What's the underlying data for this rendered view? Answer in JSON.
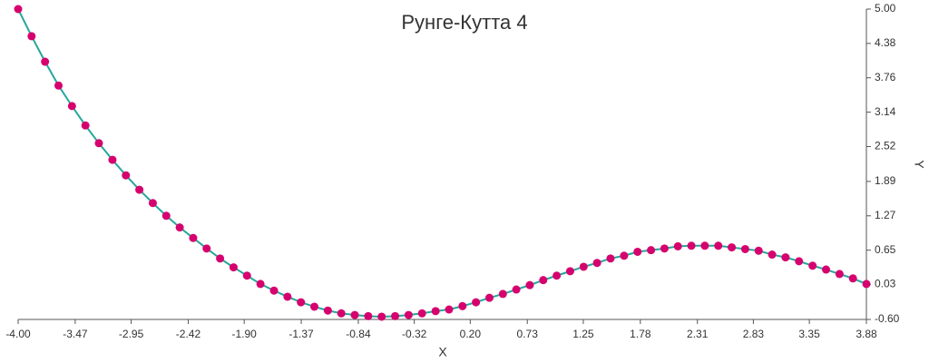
{
  "chart_data": {
    "type": "line",
    "title": "Рунге-Кутта 4",
    "x_label": "X",
    "y_label": "Y",
    "x": [
      -4.0,
      -3.875,
      -3.75,
      -3.625,
      -3.5,
      -3.375,
      -3.25,
      -3.124,
      -2.999,
      -2.874,
      -2.749,
      -2.624,
      -2.499,
      -2.374,
      -2.249,
      -2.124,
      -1.999,
      -1.874,
      -1.749,
      -1.623,
      -1.498,
      -1.373,
      -1.248,
      -1.123,
      -0.998,
      -0.873,
      -0.748,
      -0.623,
      -0.498,
      -0.373,
      -0.248,
      -0.122,
      0.003,
      0.128,
      0.253,
      0.378,
      0.503,
      0.628,
      0.753,
      0.878,
      1.003,
      1.128,
      1.253,
      1.378,
      1.503,
      1.629,
      1.754,
      1.879,
      2.004,
      2.129,
      2.254,
      2.379,
      2.504,
      2.629,
      2.754,
      2.879,
      3.004,
      3.129,
      3.254,
      3.38,
      3.505,
      3.63,
      3.755,
      3.88
    ],
    "series": [
      {
        "line_color": "#26a69a",
        "color": "#d6006e",
        "values": [
          5.0,
          4.51,
          4.05,
          3.62,
          3.25,
          2.9,
          2.58,
          2.28,
          2.0,
          1.74,
          1.5,
          1.27,
          1.06,
          0.87,
          0.68,
          0.5,
          0.34,
          0.19,
          0.04,
          -0.08,
          -0.19,
          -0.29,
          -0.37,
          -0.44,
          -0.49,
          -0.52,
          -0.54,
          -0.55,
          -0.54,
          -0.52,
          -0.49,
          -0.45,
          -0.42,
          -0.36,
          -0.29,
          -0.21,
          -0.14,
          -0.06,
          0.02,
          0.11,
          0.19,
          0.27,
          0.35,
          0.42,
          0.5,
          0.55,
          0.62,
          0.65,
          0.68,
          0.72,
          0.73,
          0.73,
          0.73,
          0.7,
          0.67,
          0.64,
          0.57,
          0.52,
          0.45,
          0.37,
          0.3,
          0.22,
          0.14,
          0.04
        ]
      }
    ],
    "xlim": [
      -4.0,
      3.88
    ],
    "xticks": [
      {
        "value": -4.0,
        "label": "-4.00"
      },
      {
        "value": -3.47,
        "label": "-3.47"
      },
      {
        "value": -2.95,
        "label": "-2.95"
      },
      {
        "value": -2.42,
        "label": "-2.42"
      },
      {
        "value": -1.9,
        "label": "-1.90"
      },
      {
        "value": -1.37,
        "label": "-1.37"
      },
      {
        "value": -0.84,
        "label": "-0.84"
      },
      {
        "value": -0.32,
        "label": "-0.32"
      },
      {
        "value": 0.2,
        "label": "0.20"
      },
      {
        "value": 0.73,
        "label": "0.73"
      },
      {
        "value": 1.25,
        "label": "1.25"
      },
      {
        "value": 1.78,
        "label": "1.78"
      },
      {
        "value": 2.31,
        "label": "2.31"
      },
      {
        "value": 2.83,
        "label": "2.83"
      },
      {
        "value": 3.35,
        "label": "3.35"
      },
      {
        "value": 3.88,
        "label": "3.88"
      }
    ],
    "ylim": [
      -0.6,
      5.0
    ],
    "yticks": [
      {
        "value": 5.0,
        "label": "5.00"
      },
      {
        "value": 4.38,
        "label": "4.38"
      },
      {
        "value": 3.76,
        "label": "3.76"
      },
      {
        "value": 3.14,
        "label": "3.14"
      },
      {
        "value": 2.52,
        "label": "2.52"
      },
      {
        "value": 1.89,
        "label": "1.89"
      },
      {
        "value": 1.27,
        "label": "1.27"
      },
      {
        "value": 0.65,
        "label": "0.65"
      },
      {
        "value": 0.03,
        "label": "0.03"
      },
      {
        "value": -0.6,
        "label": "-0.60"
      }
    ],
    "y_axis_side": "right"
  }
}
